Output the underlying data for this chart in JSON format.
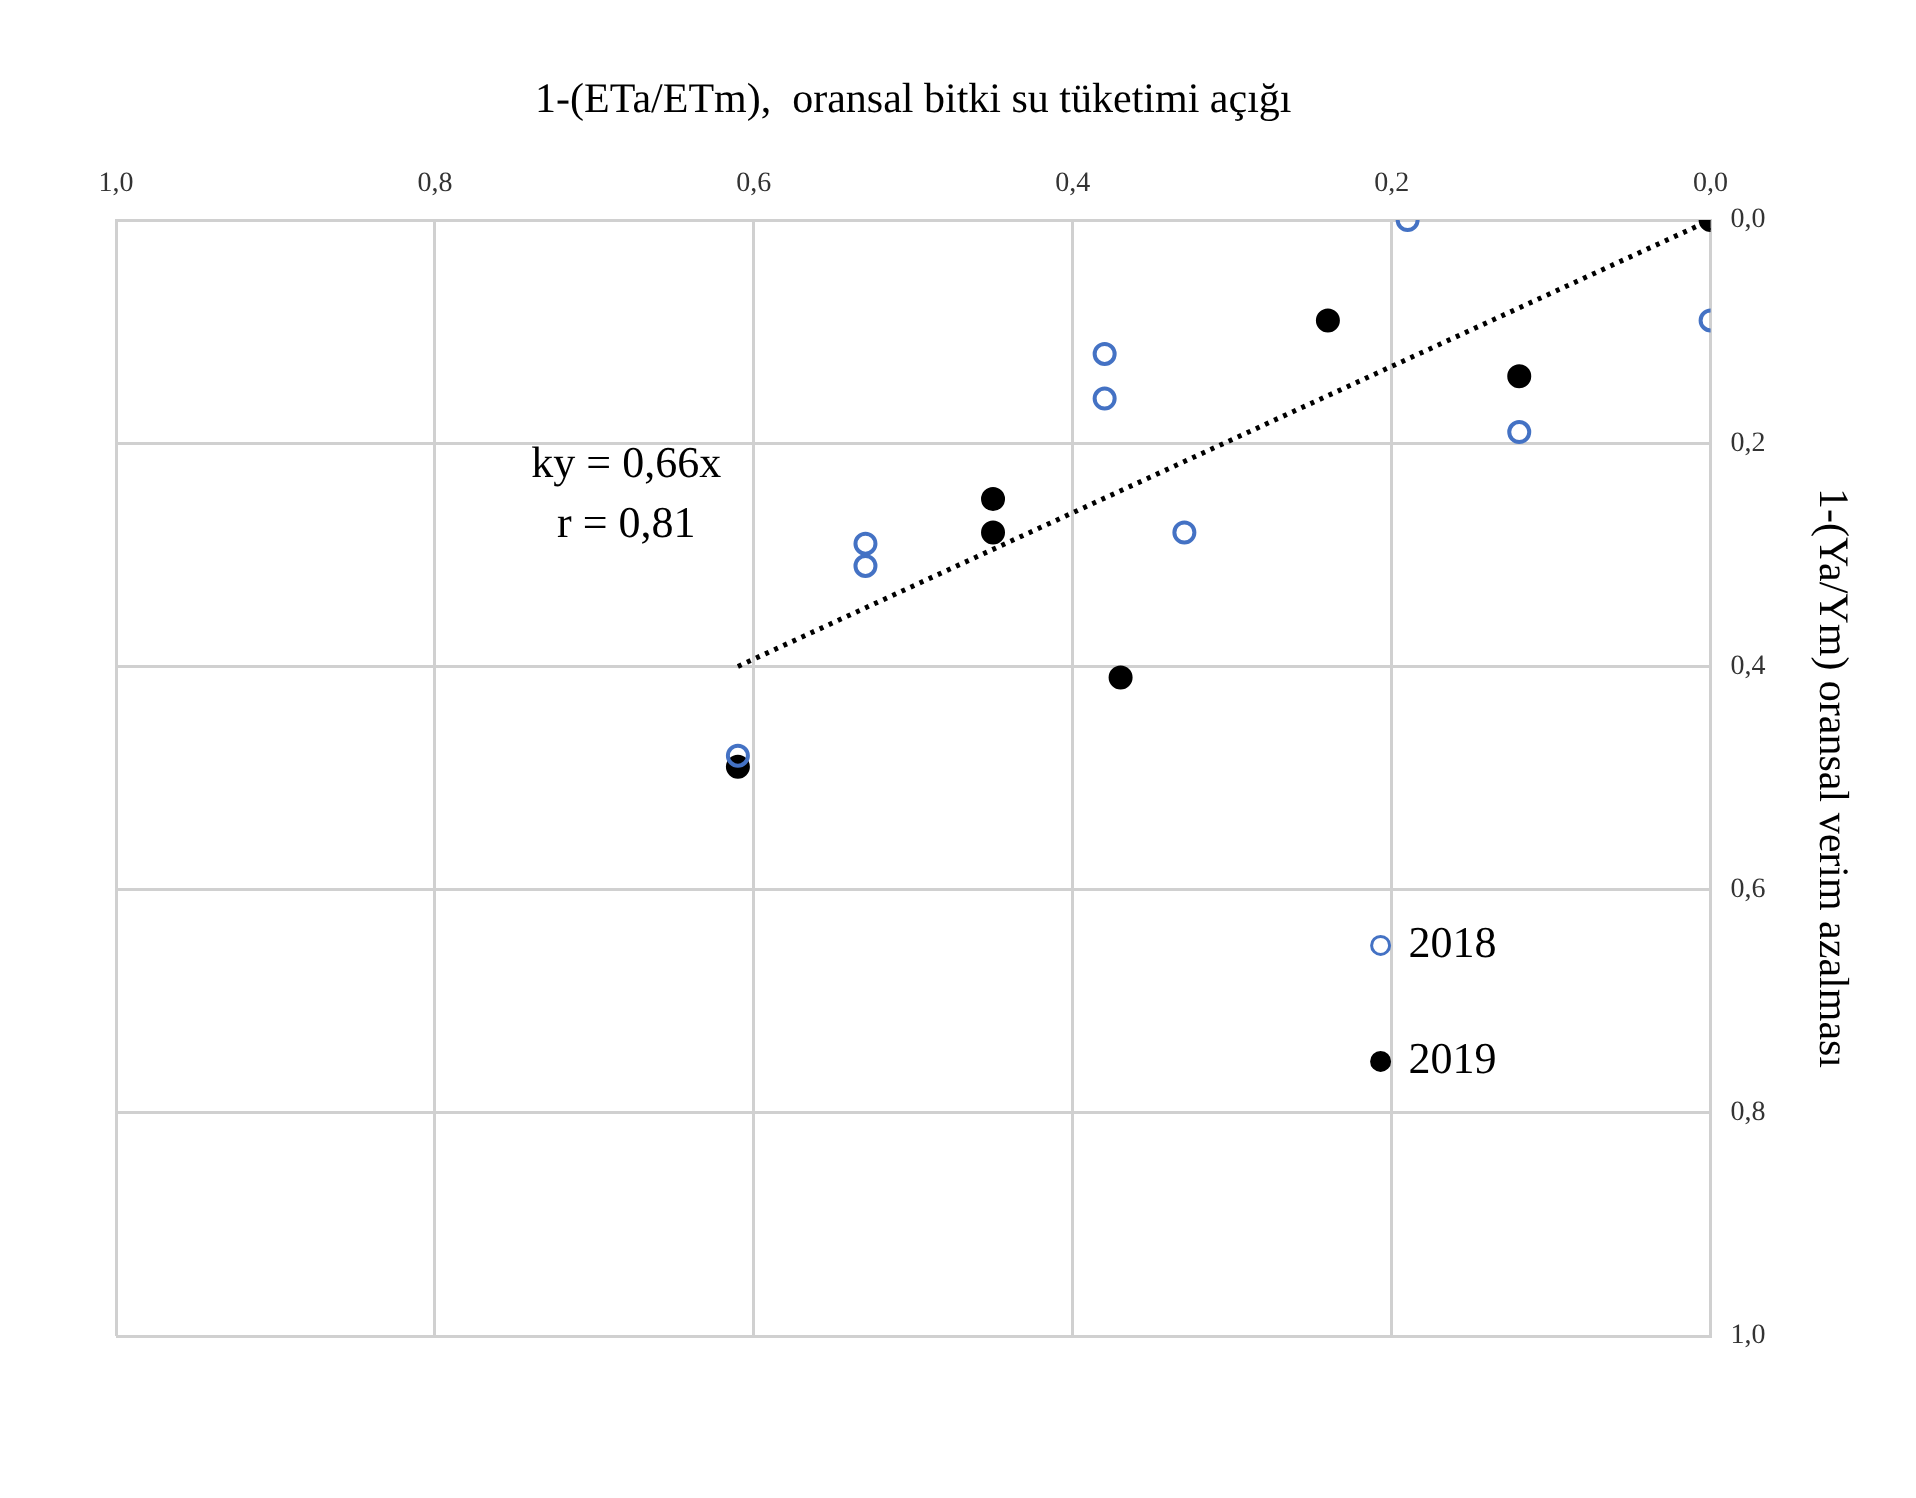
{
  "chart_data": {
    "type": "scatter",
    "xlabel": "1-(ETa/ETm),  oransal bitki su tüketimi açığı",
    "ylabel": "1-(Ya/Ym) oransal verim azalması",
    "xlim": [
      1,
      0
    ],
    "xticks": [
      {
        "value": 1,
        "label": "1,0"
      },
      {
        "value": 0.8,
        "label": "0,8"
      },
      {
        "value": 0.6,
        "label": "0,6"
      },
      {
        "value": 0.4,
        "label": "0,4"
      },
      {
        "value": 0.2,
        "label": "0,2"
      },
      {
        "value": 0,
        "label": "0,0"
      }
    ],
    "ylim": [
      1,
      0
    ],
    "yticks": [
      {
        "value": 0,
        "label": "0,0"
      },
      {
        "value": 0.2,
        "label": "0,2"
      },
      {
        "value": 0.4,
        "label": "0,4"
      },
      {
        "value": 0.6,
        "label": "0,6"
      },
      {
        "value": 0.8,
        "label": "0,8"
      },
      {
        "value": 1,
        "label": "1,0"
      }
    ],
    "grid": true,
    "legend": "bottom right",
    "marker": "circle",
    "annotations": [
      "ky = 0,66x",
      "r = 0,81"
    ],
    "series": [
      {
        "name": "2018",
        "color": "#4472c4",
        "x": [
          0.19,
          0,
          0.38,
          0.38,
          0.12,
          0.33,
          0.53,
          0.53,
          0.61
        ],
        "values": [
          0,
          0.09,
          0.12,
          0.16,
          0.19,
          0.28,
          0.29,
          0.31,
          0.48
        ]
      },
      {
        "name": "2019",
        "color": "#000000",
        "x": [
          0,
          0.24,
          0.12,
          0.45,
          0.45,
          0.37,
          0.61
        ],
        "values": [
          0,
          0.09,
          0.14,
          0.25,
          0.28,
          0.41,
          0.49
        ]
      },
      {
        "type": "line",
        "color": "#000000",
        "line_style": "dotted",
        "marker": "none",
        "x": [
          0.61,
          0
        ],
        "values": [
          0.4,
          0
        ]
      }
    ]
  }
}
